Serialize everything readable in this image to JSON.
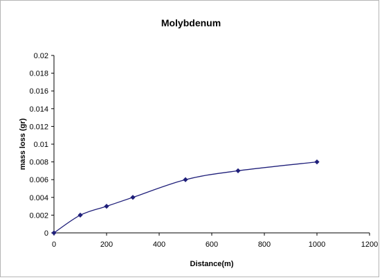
{
  "chart_data": {
    "type": "line",
    "title": "Molybdenum",
    "xlabel": "Distance(m)",
    "ylabel": "mass loss (gr)",
    "xlim": [
      0,
      1200
    ],
    "ylim": [
      0,
      0.02
    ],
    "xticks": [
      0,
      200,
      400,
      600,
      800,
      1000,
      1200
    ],
    "yticks": [
      0,
      0.002,
      0.004,
      0.006,
      0.008,
      0.01,
      0.012,
      0.014,
      0.016,
      0.018,
      0.02
    ],
    "xtick_labels": [
      "0",
      "200",
      "400",
      "600",
      "800",
      "1000",
      "1200"
    ],
    "ytick_labels": [
      "0",
      "0.002",
      "0.004",
      "0.006",
      "0.008",
      "0.01",
      "0.012",
      "0.014",
      "0.016",
      "0.018",
      "0.02"
    ],
    "grid": false,
    "legend": false,
    "series": [
      {
        "x": [
          0,
          100,
          200,
          300,
          500,
          700,
          1000
        ],
        "y": [
          0,
          0.002,
          0.003,
          0.004,
          0.006,
          0.007,
          0.008
        ],
        "color": "#1f1f7a",
        "marker": "diamond"
      }
    ]
  }
}
